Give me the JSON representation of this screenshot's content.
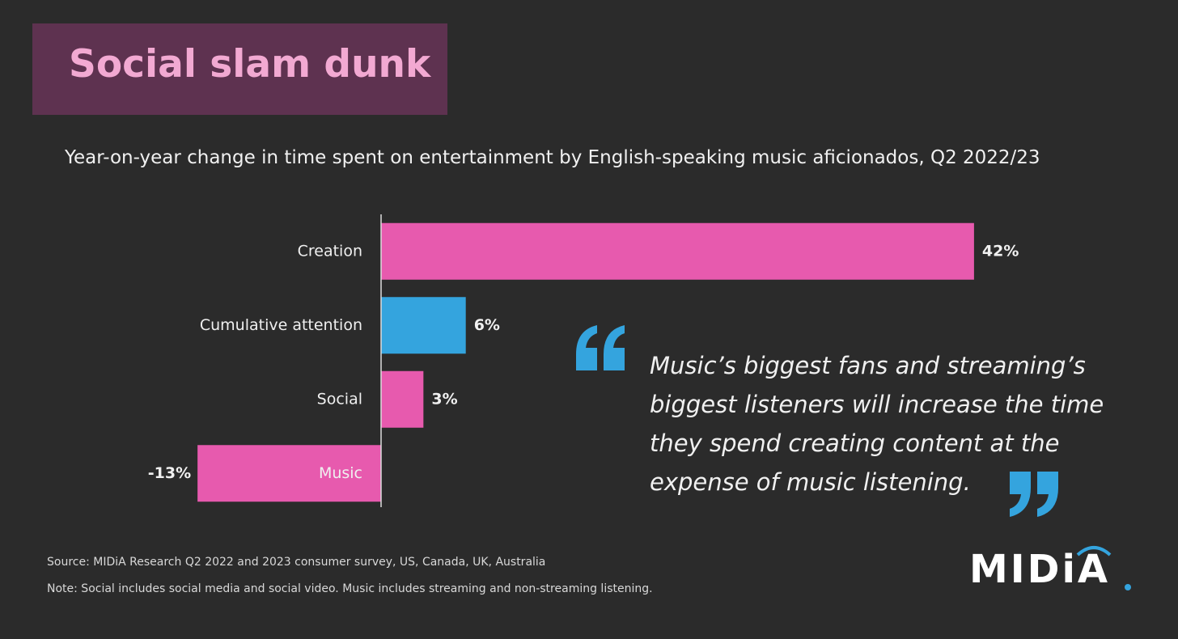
{
  "title": "Social slam dunk",
  "chart_data": {
    "type": "bar",
    "orientation": "horizontal",
    "subtitle": "Year-on-year change in time spent on entertainment by English-speaking music aficionados, Q2 2022/23",
    "categories": [
      "Creation",
      "Cumulative attention",
      "Social",
      "Music"
    ],
    "values": [
      42,
      6,
      3,
      -13
    ],
    "value_labels": [
      "42%",
      "6%",
      "3%",
      "-13%"
    ],
    "colors": [
      "#e75aae",
      "#34a4de",
      "#e75aae",
      "#e75aae"
    ]
  },
  "quote": "Music’s biggest fans and streaming’s biggest listeners will increase the time they spend creating content at the expense of music listening.",
  "source": "Source: MIDiA Research Q2 2022 and 2023 consumer survey, US, Canada, UK, Australia",
  "note": "Note: Social includes social media and social video. Music includes streaming and non-streaming listening.",
  "logo": "MIDiA"
}
